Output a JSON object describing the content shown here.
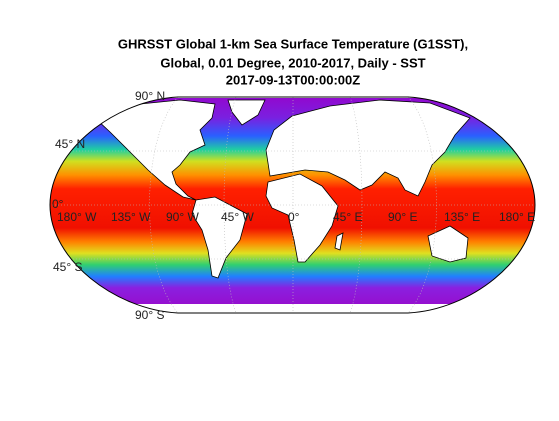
{
  "title": [
    "GHRSST Global 1-km Sea Surface Temperature (G1SST),",
    "Global, 0.01 Degree, 2010-2017, Daily - SST",
    "2017-09-13T00:00:00Z"
  ],
  "latitude_labels": [
    "90° N",
    "45° N",
    "0°",
    "45° S",
    "90° S"
  ],
  "longitude_labels": [
    "180° W",
    "135° W",
    "90° W",
    "45° W",
    "0°",
    "45° E",
    "90° E",
    "135° E",
    "180° E"
  ]
}
